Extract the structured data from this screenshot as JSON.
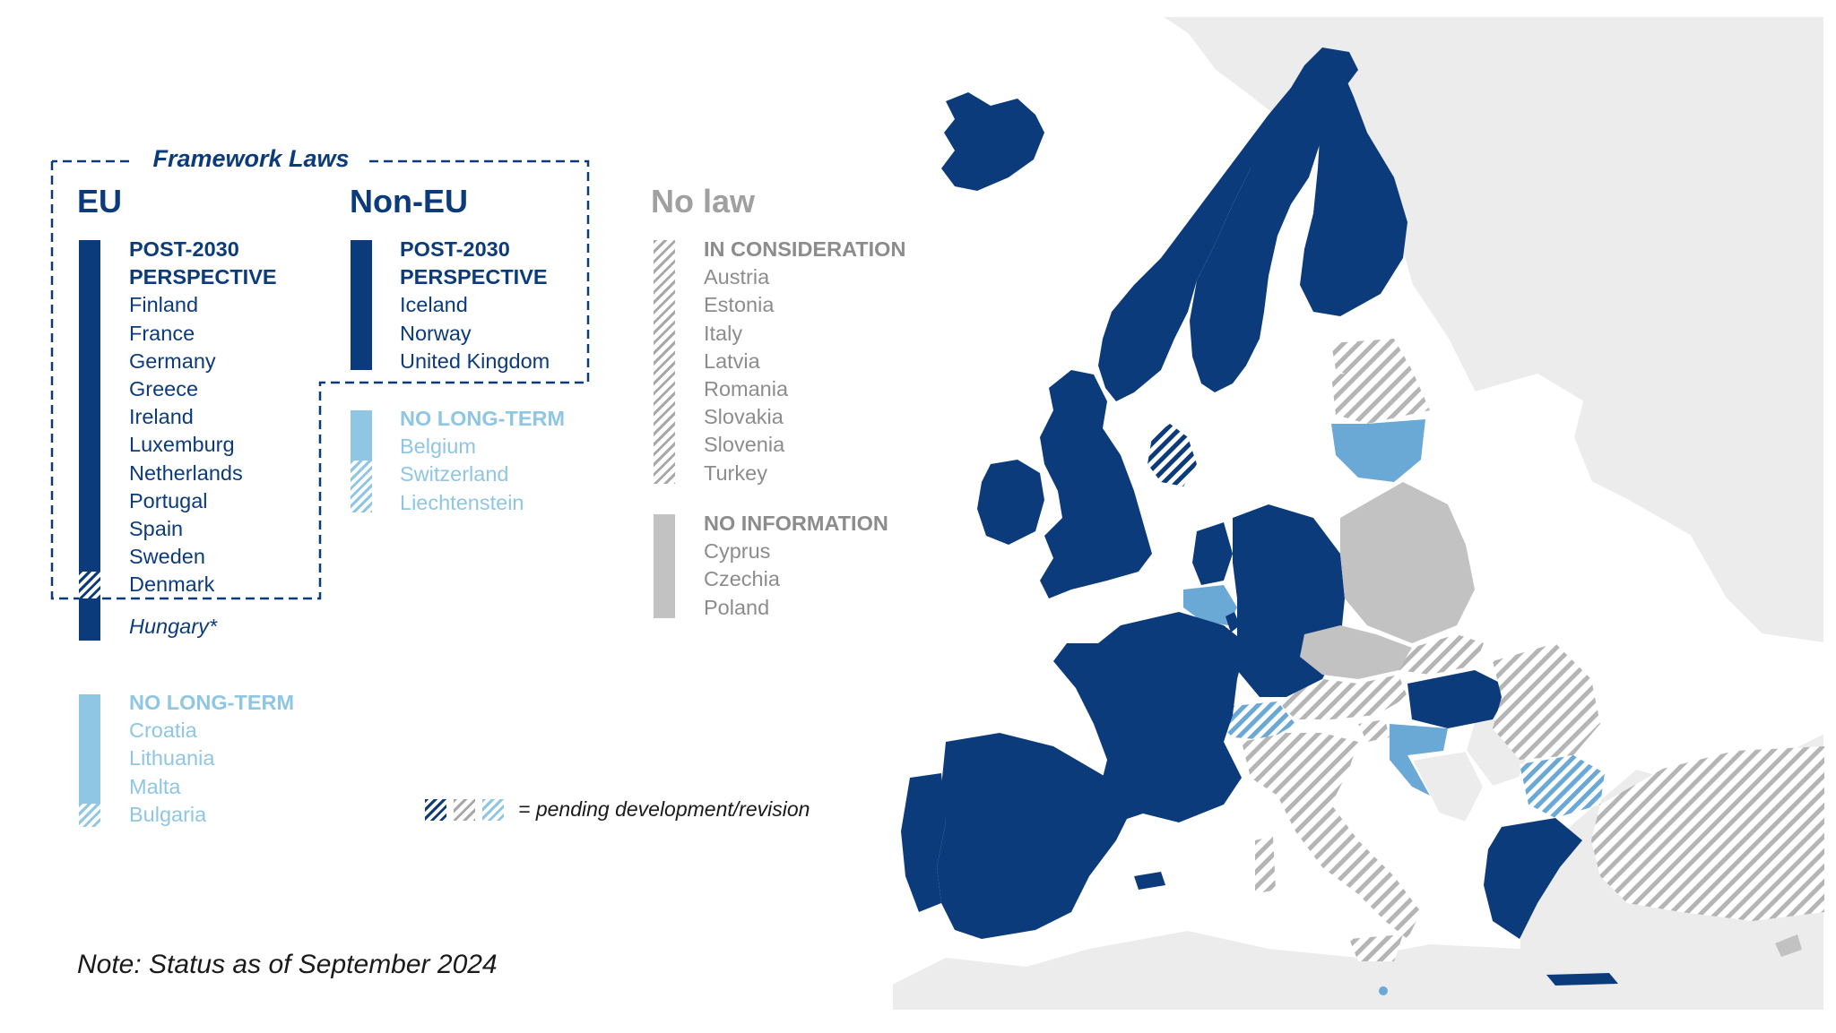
{
  "framework": {
    "title": "Framework Laws",
    "eu": {
      "heading": "EU",
      "post2030": {
        "title": [
          "POST-2030",
          "PERSPECTIVE"
        ],
        "countries": [
          "Finland",
          "France",
          "Germany",
          "Greece",
          "Ireland",
          "Luxemburg",
          "Netherlands",
          "Portugal",
          "Spain",
          "Sweden",
          "Denmark"
        ],
        "pending": [
          "Denmark"
        ],
        "footnote": "Hungary*"
      },
      "no_long_term": {
        "title": "NO LONG-TERM",
        "countries": [
          "Croatia",
          "Lithuania",
          "Malta",
          "Bulgaria"
        ],
        "pending": [
          "Bulgaria"
        ]
      }
    },
    "non_eu": {
      "heading": "Non-EU",
      "post2030": {
        "title": [
          "POST-2030",
          "PERSPECTIVE"
        ],
        "countries": [
          "Iceland",
          "Norway",
          "United Kingdom"
        ]
      },
      "no_long_term": {
        "title": "NO LONG-TERM",
        "countries": [
          "Belgium",
          "Switzerland",
          "Liechtenstein"
        ],
        "pending": [
          "Switzerland",
          "Liechtenstein"
        ]
      }
    }
  },
  "no_law": {
    "heading": "No law",
    "in_consideration": {
      "title": "IN CONSIDERATION",
      "countries": [
        "Austria",
        "Estonia",
        "Italy",
        "Latvia",
        "Romania",
        "Slovakia",
        "Slovenia",
        "Turkey"
      ]
    },
    "no_information": {
      "title": "NO INFORMATION",
      "countries": [
        "Cyprus",
        "Czechia",
        "Poland"
      ]
    }
  },
  "legend": {
    "pending_label": "= pending development/revision"
  },
  "note": "Note: Status as of September 2024",
  "colors": {
    "post2030": "#0c3b7c",
    "no_long_term": "#8ec6e3",
    "mid_blue": "#6aa8d6",
    "no_information": "#c2c2c2",
    "in_consideration_hatch": "#a8a8a8",
    "background_land": "#ececec"
  },
  "map": {
    "post2030": [
      "Finland",
      "France",
      "Germany",
      "Greece",
      "Ireland",
      "Luxemburg",
      "Netherlands",
      "Portugal",
      "Spain",
      "Sweden",
      "Denmark",
      "Hungary",
      "Iceland",
      "Norway",
      "United Kingdom"
    ],
    "no_long_term": [
      "Croatia",
      "Lithuania",
      "Malta",
      "Bulgaria",
      "Belgium",
      "Switzerland",
      "Liechtenstein"
    ],
    "in_consideration": [
      "Austria",
      "Estonia",
      "Italy",
      "Latvia",
      "Romania",
      "Slovakia",
      "Slovenia",
      "Turkey"
    ],
    "no_information": [
      "Cyprus",
      "Czechia",
      "Poland"
    ]
  }
}
